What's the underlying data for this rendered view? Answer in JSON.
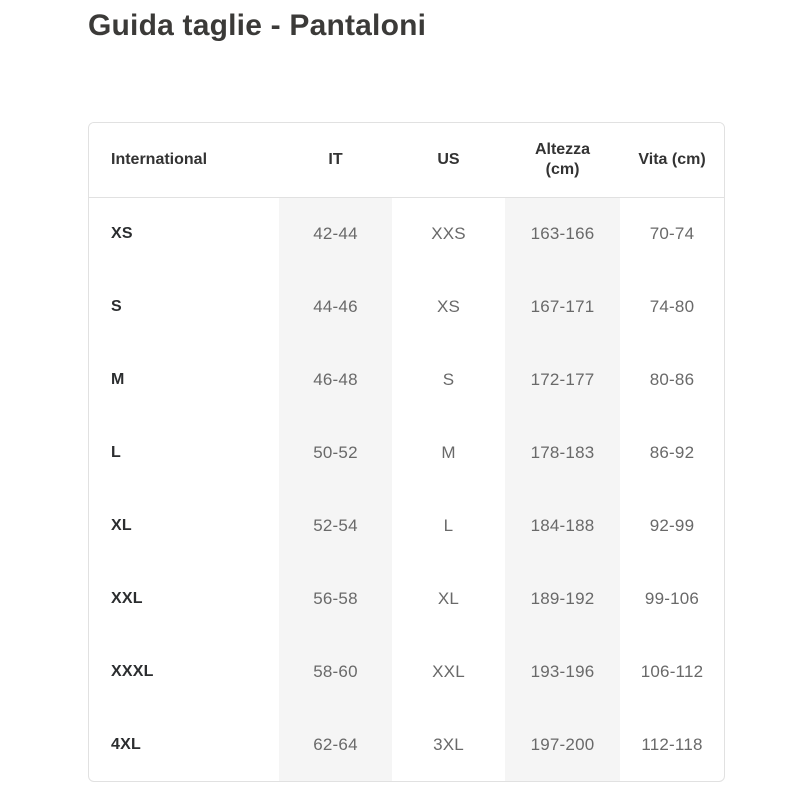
{
  "page": {
    "title": "Guida taglie - Pantaloni"
  },
  "table": {
    "columns": [
      "International",
      "IT",
      "US",
      "Altezza (cm)",
      "Vita (cm)"
    ],
    "rows": [
      [
        "XS",
        "42-44",
        "XXS",
        "163-166",
        "70-74"
      ],
      [
        "S",
        "44-46",
        "XS",
        "167-171",
        "74-80"
      ],
      [
        "M",
        "46-48",
        "S",
        "172-177",
        "80-86"
      ],
      [
        "L",
        "50-52",
        "M",
        "178-183",
        "86-92"
      ],
      [
        "XL",
        "52-54",
        "L",
        "184-188",
        "92-99"
      ],
      [
        "XXL",
        "56-58",
        "XL",
        "189-192",
        "99-106"
      ],
      [
        "XXXL",
        "58-60",
        "XXL",
        "193-196",
        "106-112"
      ],
      [
        "4XL",
        "62-64",
        "3XL",
        "197-200",
        "112-118"
      ]
    ]
  },
  "colors": {
    "title_text": "#3b3a38",
    "header_text": "#333333",
    "row_label_text": "#2b2d2f",
    "value_text": "#696969",
    "shaded_column_bg": "#f5f5f5",
    "table_border": "#e1e1e1",
    "page_bg": "#ffffff"
  }
}
